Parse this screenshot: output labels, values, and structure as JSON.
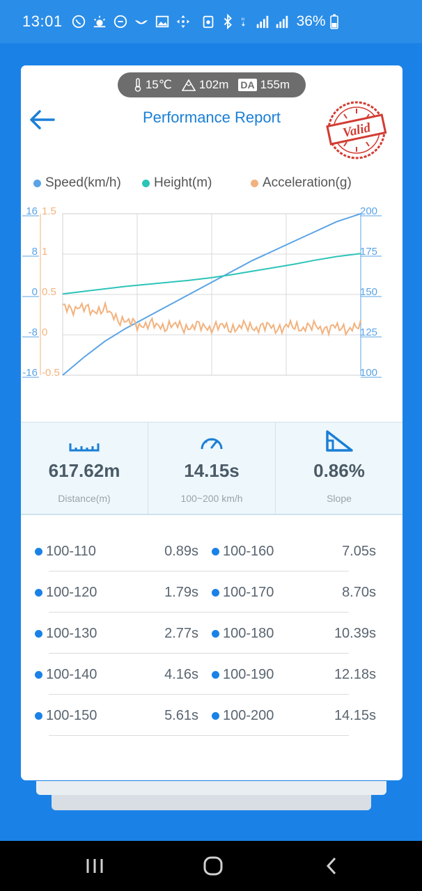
{
  "status_bar": {
    "time": "13:01",
    "battery": "36%",
    "icons": [
      "viber-icon",
      "weather-icon",
      "chat-icon",
      "bird-icon",
      "gallery-icon",
      "move-icon",
      "nfc-icon",
      "bluetooth-icon",
      "hd-icon",
      "signal1-icon",
      "signal2-icon",
      "battery-icon"
    ]
  },
  "env": {
    "temperature": "15℃",
    "altitude": "102m",
    "da_label": "DA",
    "density_altitude": "155m"
  },
  "header": {
    "title": "Performance Report",
    "stamp_text": "Valid"
  },
  "legend": [
    {
      "label": "Speed(km/h)",
      "color": "#5aa3e6"
    },
    {
      "label": "Height(m)",
      "color": "#2cc4b8"
    },
    {
      "label": "Acceleration(g)",
      "color": "#f2b27e"
    }
  ],
  "chart_data": {
    "type": "line",
    "x": [
      0,
      1,
      2,
      3,
      4,
      5,
      6,
      7,
      8,
      9,
      10,
      11,
      12,
      13,
      14.15
    ],
    "series": [
      {
        "name": "Speed(km/h)",
        "axis": "right",
        "color": "#5aa3e6",
        "values": [
          100,
          111,
          121,
          129,
          136,
          143,
          150,
          157,
          164,
          171,
          177,
          183,
          189,
          195,
          200
        ]
      },
      {
        "name": "Height(m)",
        "axis": "left-blue",
        "color": "#2cc4b8",
        "values": [
          0.1,
          0.6,
          1.1,
          1.6,
          2.0,
          2.4,
          2.8,
          3.3,
          3.9,
          4.6,
          5.3,
          6.0,
          6.8,
          7.5,
          8.1
        ]
      },
      {
        "name": "Acceleration(g)",
        "axis": "left-orange",
        "color": "#f2b27e",
        "values": [
          0.35,
          0.32,
          0.3,
          0.15,
          0.12,
          0.11,
          0.1,
          0.1,
          0.09,
          0.1,
          0.09,
          0.1,
          0.09,
          0.08,
          0.09
        ]
      }
    ],
    "left_blue_axis": {
      "ticks": [
        "16",
        "8",
        "0",
        "-8",
        "-16"
      ],
      "range": [
        -16,
        16
      ]
    },
    "left_orange_axis": {
      "ticks": [
        "1.5",
        "1",
        "0.5",
        "0",
        "-0.5"
      ],
      "range": [
        -0.5,
        1.5
      ]
    },
    "right_axis": {
      "ticks": [
        "200",
        "175",
        "150",
        "125",
        "100"
      ],
      "range": [
        100,
        200
      ]
    },
    "grid": true
  },
  "stats": [
    {
      "icon": "ruler-icon",
      "value": "617.62m",
      "label": "Distance(m)"
    },
    {
      "icon": "speedometer-icon",
      "value": "14.15s",
      "label": "100~200 km/h"
    },
    {
      "icon": "slope-icon",
      "value": "0.86%",
      "label": "Slope"
    }
  ],
  "splits": [
    {
      "left_label": "100-110",
      "left_time": "0.89s",
      "right_label": "100-160",
      "right_time": "7.05s"
    },
    {
      "left_label": "100-120",
      "left_time": "1.79s",
      "right_label": "100-170",
      "right_time": "8.70s"
    },
    {
      "left_label": "100-130",
      "left_time": "2.77s",
      "right_label": "100-180",
      "right_time": "10.39s"
    },
    {
      "left_label": "100-140",
      "left_time": "4.16s",
      "right_label": "100-190",
      "right_time": "12.18s"
    },
    {
      "left_label": "100-150",
      "left_time": "5.61s",
      "right_label": "100-200",
      "right_time": "14.15s"
    }
  ]
}
